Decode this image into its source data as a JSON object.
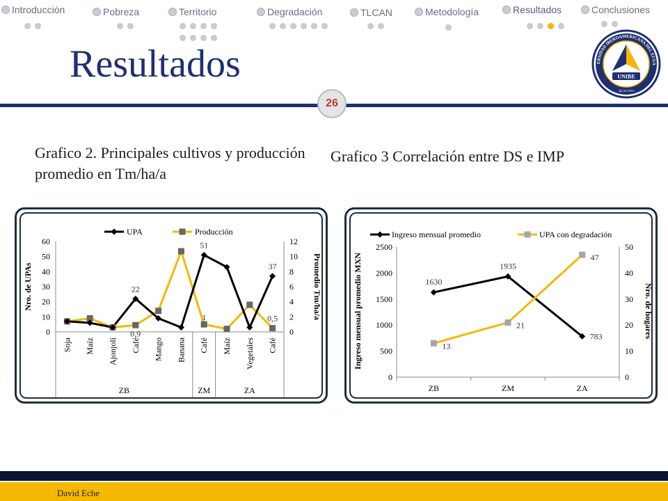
{
  "nav": {
    "items": [
      {
        "label": "Introducción",
        "dots": 2,
        "active_dot": -1
      },
      {
        "label": "Pobreza",
        "dots": 2,
        "active_dot": -1
      },
      {
        "label": "Territorio",
        "dots": 8,
        "active_dot": -1
      },
      {
        "label": "Degradación",
        "dots": 6,
        "active_dot": -1
      },
      {
        "label": "TLCAN",
        "dots": 2,
        "active_dot": -1
      },
      {
        "label": "Metodología",
        "dots": 1,
        "active_dot": -1
      },
      {
        "label": "Resultados",
        "dots": 4,
        "active_dot": 2
      },
      {
        "label": "Conclusiones",
        "dots": 2,
        "active_dot": -1
      }
    ]
  },
  "slide": {
    "title": "Resultados",
    "page_number": "26",
    "caption_left": "Grafico 2. Principales cultivos y producción promedio en Tm/ha/a",
    "caption_right": "Grafico 3 Correlación entre DS e IMP",
    "author": "David  Eche",
    "logo_text_ring": "UNIVERSIDAD IBEROAMERICANA DEL ECUADOR",
    "logo_text_name": "UNIBE",
    "logo_text_motto": "QUALITAS"
  },
  "colors": {
    "navy": "#1f2f72",
    "gold": "#f5b800",
    "series_dark": "#000000",
    "series_gold": "#f5b800",
    "marker_gray": "#7f7f7f",
    "marker_lightgray": "#a6a6a6"
  },
  "chart_data": [
    {
      "type": "line",
      "categories": [
        "Soja",
        "Maíz",
        "Ajonjolí",
        "Café",
        "Mango",
        "Banana",
        "Café",
        "Maíz",
        "Vegetales",
        "Café"
      ],
      "groups": [
        {
          "label": "ZB",
          "span": 6
        },
        {
          "label": "ZM",
          "span": 1
        },
        {
          "label": "ZA",
          "span": 3
        }
      ],
      "series": [
        {
          "name": "UPA",
          "axis": "left",
          "values": [
            7,
            6,
            3,
            22,
            9,
            3,
            51,
            43,
            3,
            37
          ]
        },
        {
          "name": "Producción",
          "axis": "right",
          "values": [
            1.4,
            1.8,
            0.6,
            0.9,
            2.8,
            10.7,
            1,
            0.4,
            3.6,
            0.5
          ]
        }
      ],
      "data_labels": [
        {
          "series": "UPA",
          "index": 3,
          "text": "22"
        },
        {
          "series": "UPA",
          "index": 6,
          "text": "51"
        },
        {
          "series": "UPA",
          "index": 9,
          "text": "37"
        },
        {
          "series": "Producción",
          "index": 3,
          "text": "0,9"
        },
        {
          "series": "Producción",
          "index": 6,
          "text": "1"
        },
        {
          "series": "Producción",
          "index": 9,
          "text": "0,5"
        }
      ],
      "ylabel": "Nro. de UPAs",
      "y2label": "Promedio Tm/ha/a",
      "ylim": [
        0,
        60
      ],
      "y2lim": [
        0,
        12
      ],
      "yticks": [
        "0",
        "10",
        "20",
        "30",
        "40",
        "50",
        "60"
      ],
      "y2ticks": [
        "0",
        "2",
        "4",
        "6",
        "8",
        "10",
        "12"
      ],
      "legend": "top"
    },
    {
      "type": "line",
      "categories": [
        "ZB",
        "ZM",
        "ZA"
      ],
      "series": [
        {
          "name": "Ingreso mensual promedio",
          "axis": "left",
          "values": [
            1630,
            1935,
            783
          ]
        },
        {
          "name": "UPA con degradación",
          "axis": "right",
          "values": [
            13,
            21,
            47
          ]
        }
      ],
      "data_labels_left": [
        "1630",
        "1935",
        "783"
      ],
      "data_labels_right": [
        "13",
        "21",
        "47"
      ],
      "ylabel": "Ingreso mensual promedio MXN",
      "y2label": "Nro. de hogares",
      "ylim": [
        0,
        2500
      ],
      "y2lim": [
        0,
        50
      ],
      "yticks": [
        "0",
        "500",
        "1000",
        "1500",
        "2000",
        "2500"
      ],
      "y2ticks": [
        "0",
        "10",
        "20",
        "30",
        "40",
        "50"
      ],
      "legend": "top"
    }
  ]
}
